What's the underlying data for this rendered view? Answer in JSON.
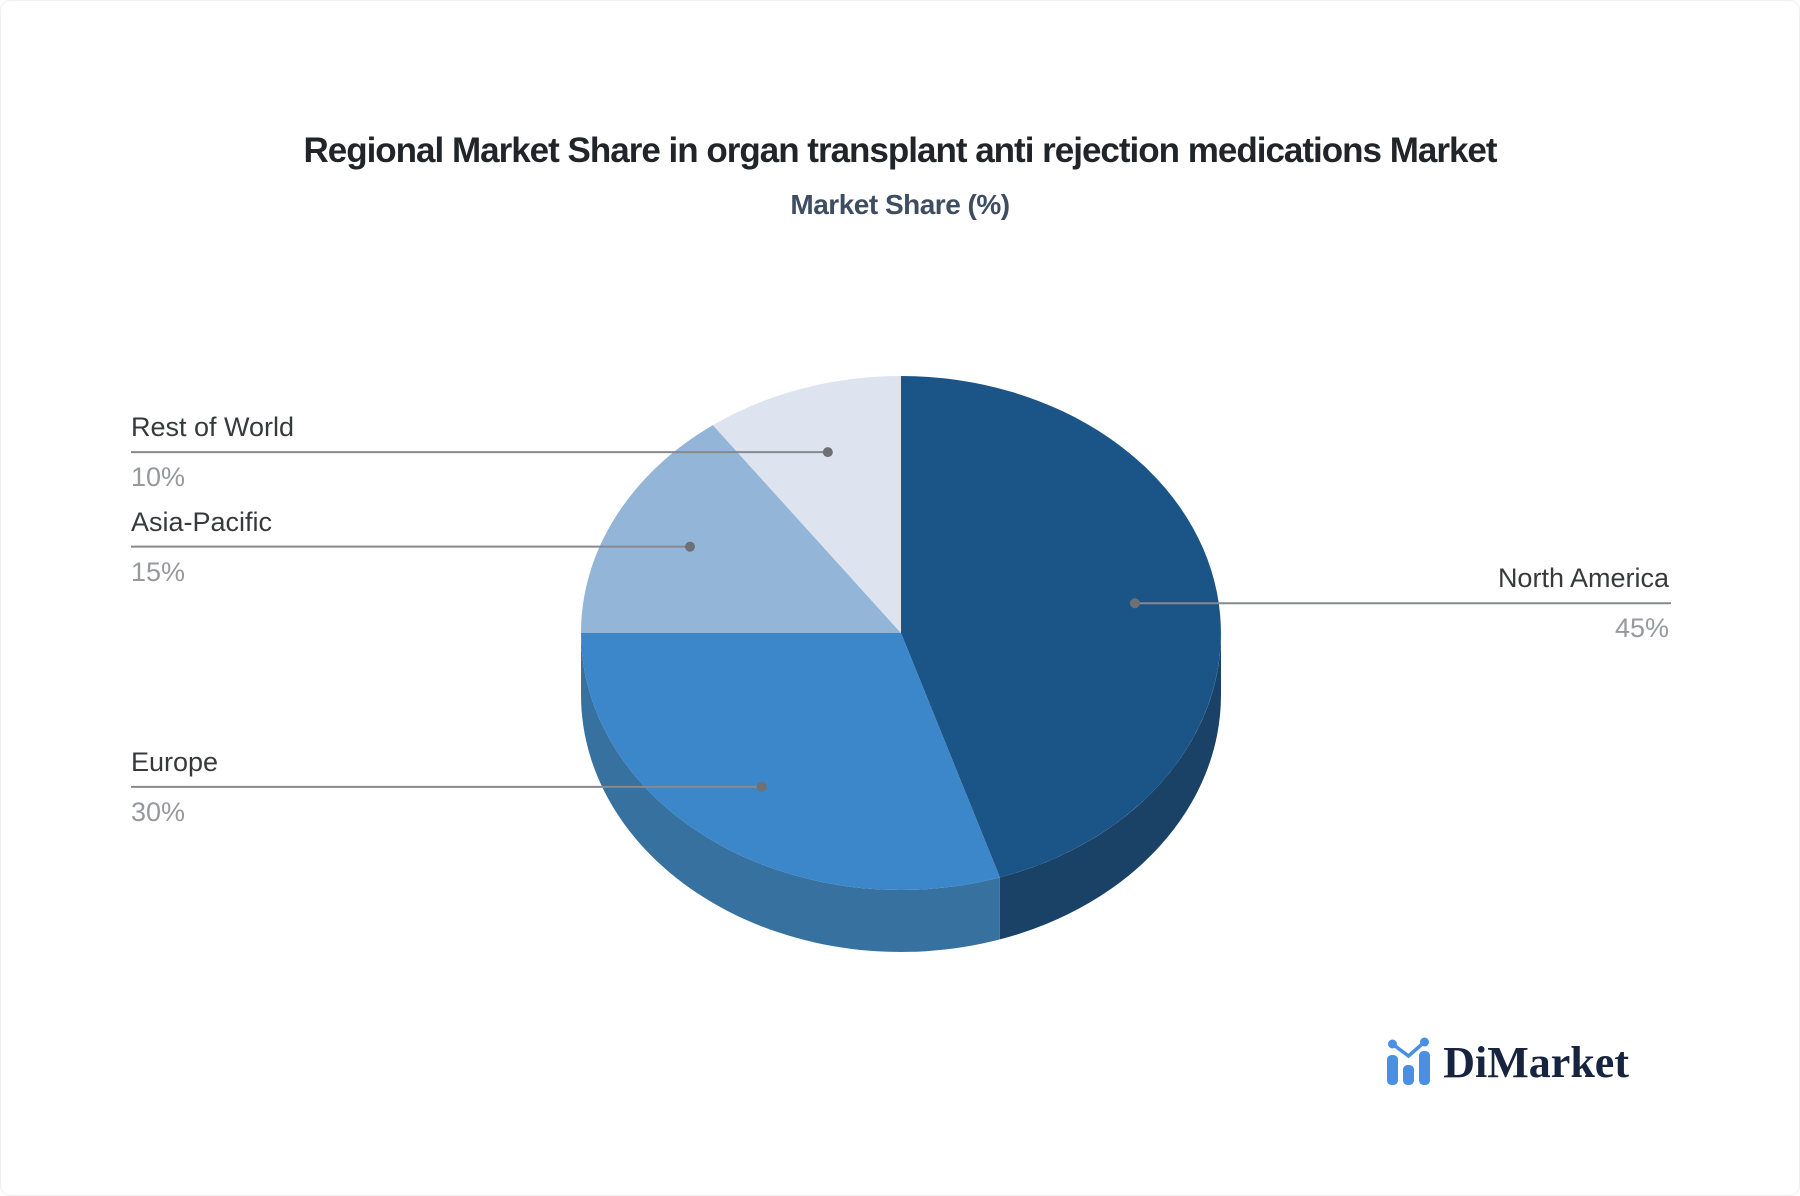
{
  "chart_data": {
    "type": "pie",
    "title": "Regional Market Share in organ transplant anti rejection medications Market",
    "subtitle": "Market Share (%)",
    "start_angle_deg_from_top_clockwise": 0,
    "effect": "3d",
    "legend_position": "leader-lines",
    "slices": [
      {
        "label": "North America",
        "value": 45,
        "pct_label": "45%",
        "color": "#1b5587",
        "side_color": "#1a4166"
      },
      {
        "label": "Europe",
        "value": 30,
        "pct_label": "30%",
        "color": "#3b87c9",
        "side_color": "#37719f"
      },
      {
        "label": "Asia-Pacific",
        "value": 15,
        "pct_label": "15%",
        "color": "#93b5d8",
        "side_color": "#7fa3c6"
      },
      {
        "label": "Rest of World",
        "value": 10,
        "pct_label": "10%",
        "color": "#dde4ef",
        "side_color": "#c2cfdf"
      }
    ]
  },
  "colors": {
    "leader_line": "#87898c",
    "leader_dot": "#6e7073",
    "label_name": "#37393b",
    "label_pct": "#97999e",
    "logo_blue": "#4a90e2",
    "logo_navy": "#17243f"
  },
  "logo": {
    "text": "DiMarket"
  }
}
